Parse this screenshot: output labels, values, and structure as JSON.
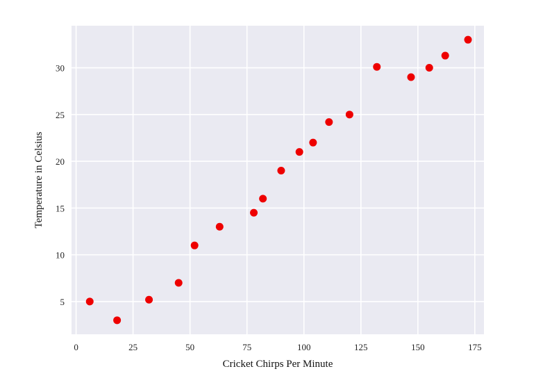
{
  "chart_data": {
    "type": "scatter",
    "title": "",
    "xlabel": "Cricket Chirps Per Minute",
    "ylabel": "Temperature in Celsius",
    "xlim": [
      -2,
      179
    ],
    "ylim": [
      1.5,
      34.5
    ],
    "xticks": [
      0,
      25,
      50,
      75,
      100,
      125,
      150,
      175
    ],
    "yticks": [
      5,
      10,
      15,
      20,
      25,
      30
    ],
    "grid": true,
    "background_color": "#EAEAF2",
    "grid_color": "#FFFFFF",
    "marker_color": "#EE0000",
    "series": [
      {
        "x": [
          6,
          18,
          32,
          45,
          52,
          63,
          78,
          82,
          90,
          98,
          104,
          111,
          120,
          132,
          147,
          155,
          162,
          172
        ],
        "y": [
          5,
          3,
          5.2,
          7,
          11,
          13,
          14.5,
          16,
          19,
          21,
          22,
          24.2,
          25,
          30.1,
          29,
          30,
          31.3,
          33
        ]
      }
    ]
  }
}
